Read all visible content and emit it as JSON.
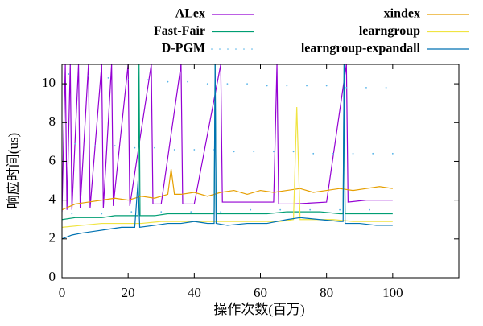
{
  "chart_data": {
    "type": "line",
    "xlabel": "操作次数(百万)",
    "ylabel": "响应时间(us)",
    "xlim": [
      0,
      120
    ],
    "ylim": [
      0,
      11
    ],
    "xticks": [
      0,
      20,
      40,
      60,
      80,
      100
    ],
    "yticks": [
      0,
      2,
      4,
      6,
      8,
      10
    ],
    "series": [
      {
        "name": "ALex",
        "color": "#9400d3",
        "x": [
          0,
          1,
          1.5,
          2.5,
          3,
          5,
          5.5,
          8,
          8.5,
          12,
          12.5,
          15,
          15.5,
          20,
          20.5,
          27,
          27.5,
          30,
          36,
          36.5,
          40,
          48,
          48.5,
          55,
          64,
          65,
          65.5,
          70,
          80,
          86,
          86.5,
          92,
          100
        ],
        "values": [
          3.4,
          11,
          3.5,
          11,
          3.5,
          11,
          3.6,
          11,
          3.6,
          11,
          3.6,
          11,
          3.7,
          11,
          3.7,
          11,
          3.8,
          3.8,
          11,
          3.8,
          3.8,
          11,
          3.9,
          3.9,
          3.9,
          11,
          3.8,
          3.8,
          3.9,
          11,
          3.9,
          4.0,
          4.0
        ]
      },
      {
        "name": "Fast-Fair",
        "color": "#009e73",
        "x": [
          0,
          4,
          8,
          12,
          16,
          20,
          23,
          23.3,
          23.6,
          28,
          32,
          36,
          40,
          44,
          46,
          46.3,
          46.6,
          50,
          56,
          62,
          68,
          72,
          78,
          84,
          85,
          85.3,
          85.6,
          90,
          95,
          100
        ],
        "values": [
          3.0,
          3.1,
          3.1,
          3.1,
          3.2,
          3.2,
          3.2,
          11,
          3.2,
          3.2,
          3.3,
          3.3,
          3.3,
          3.3,
          3.3,
          11,
          3.3,
          3.3,
          3.3,
          3.3,
          3.4,
          3.4,
          3.4,
          3.3,
          3.3,
          11,
          3.3,
          3.3,
          3.3,
          3.3
        ]
      },
      {
        "name": "D-PGM",
        "color": "#56b4e9",
        "marker": "dot",
        "x": [
          2,
          8,
          14,
          20,
          26,
          32,
          38,
          44,
          50,
          56,
          62,
          68,
          74,
          80,
          86,
          92,
          98,
          4,
          10,
          16,
          22,
          28,
          34,
          40,
          46,
          52,
          58,
          64,
          70,
          76,
          82,
          88,
          94,
          100,
          3,
          12,
          21,
          30,
          39,
          48,
          57,
          66,
          75,
          84,
          93
        ],
        "values": [
          10.5,
          10.4,
          10.3,
          10.2,
          10.2,
          10.1,
          10.1,
          10.0,
          10.0,
          10.0,
          9.9,
          9.9,
          9.9,
          9.9,
          9.8,
          9.8,
          9.8,
          6.9,
          6.8,
          6.8,
          6.7,
          6.7,
          6.6,
          6.6,
          6.6,
          6.5,
          6.5,
          6.5,
          6.5,
          6.4,
          6.4,
          6.4,
          6.4,
          6.4,
          3.3,
          3.3,
          3.4,
          3.4,
          3.4,
          3.4,
          3.5,
          3.5,
          3.5,
          3.5,
          3.5
        ]
      },
      {
        "name": "xindex",
        "color": "#e69f00",
        "x": [
          0,
          4,
          8,
          12,
          16,
          20,
          24,
          28,
          32,
          33,
          34,
          36,
          40,
          44,
          48,
          52,
          56,
          60,
          64,
          68,
          72,
          76,
          80,
          84,
          88,
          92,
          96,
          100
        ],
        "values": [
          3.5,
          3.8,
          3.9,
          4.0,
          4.1,
          4.0,
          4.2,
          4.1,
          4.3,
          5.6,
          4.3,
          4.3,
          4.4,
          4.2,
          4.4,
          4.5,
          4.3,
          4.5,
          4.4,
          4.5,
          4.6,
          4.4,
          4.5,
          4.6,
          4.5,
          4.6,
          4.7,
          4.6
        ]
      },
      {
        "name": "learngroup",
        "color": "#f0e442",
        "x": [
          0,
          6,
          12,
          18,
          24,
          30,
          36,
          42,
          48,
          54,
          60,
          66,
          70,
          71,
          72,
          76,
          82,
          88,
          94,
          100
        ],
        "values": [
          2.6,
          2.7,
          2.8,
          2.8,
          2.8,
          2.9,
          2.9,
          2.9,
          2.9,
          2.9,
          2.9,
          2.9,
          3.0,
          8.8,
          3.0,
          3.0,
          3.0,
          2.9,
          2.9,
          2.9
        ]
      },
      {
        "name": "learngroup-expandall",
        "color": "#0072b2",
        "x": [
          0,
          3,
          6,
          10,
          14,
          18,
          22,
          23,
          23.5,
          28,
          32,
          36,
          40,
          44,
          46,
          46.3,
          46.6,
          50,
          56,
          62,
          68,
          72,
          78,
          84,
          85,
          85.3,
          85.6,
          90,
          95,
          100
        ],
        "values": [
          2.0,
          2.2,
          2.3,
          2.4,
          2.5,
          2.6,
          2.6,
          5.0,
          2.6,
          2.7,
          2.8,
          2.8,
          2.9,
          2.8,
          2.8,
          11,
          2.8,
          2.7,
          2.8,
          2.8,
          3.0,
          3.1,
          3.0,
          2.9,
          2.9,
          11,
          2.8,
          2.8,
          2.7,
          2.7
        ]
      }
    ]
  }
}
